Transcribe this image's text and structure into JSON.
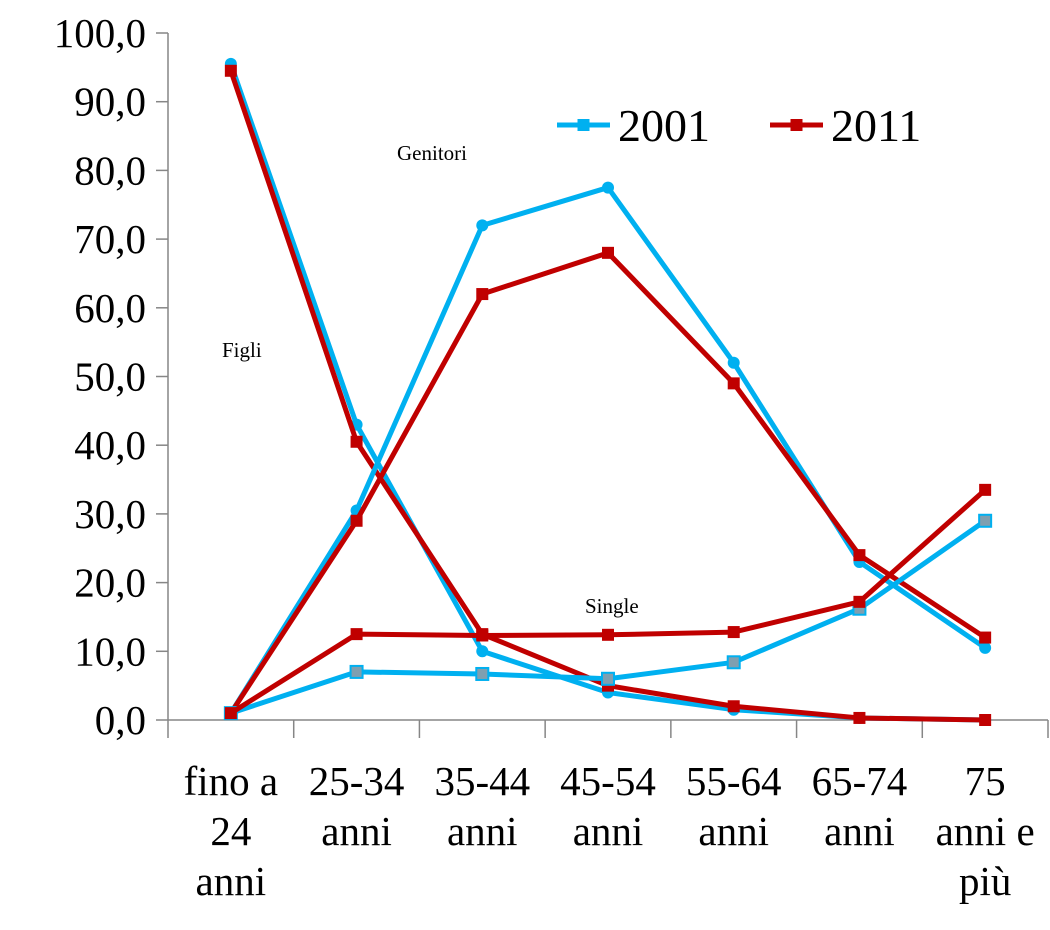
{
  "chart_data": {
    "type": "line",
    "categories": [
      [
        "fino a",
        "24",
        "anni"
      ],
      [
        "25-34",
        "anni"
      ],
      [
        "35-44",
        "anni"
      ],
      [
        "45-54",
        "anni"
      ],
      [
        "55-64",
        "anni"
      ],
      [
        "65-74",
        "anni"
      ],
      [
        "75",
        "anni e",
        "più"
      ]
    ],
    "ylim": [
      0,
      100
    ],
    "yticks": [
      "0,0",
      "10,0",
      "20,0",
      "30,0",
      "40,0",
      "50,0",
      "60,0",
      "70,0",
      "80,0",
      "90,0",
      "100,0"
    ],
    "legend": {
      "position": "top-right",
      "entries": [
        "2001",
        "2011"
      ]
    },
    "colors": {
      "2001": "#00B0F0",
      "2011": "#C00000"
    },
    "grid": false,
    "groups": [
      {
        "name": "Figli",
        "series": [
          {
            "year": "2001",
            "values": [
              95.5,
              43.0,
              10.0,
              4.0,
              1.5,
              0.3,
              0.0
            ]
          },
          {
            "year": "2011",
            "values": [
              94.5,
              40.5,
              12.5,
              5.0,
              2.0,
              0.3,
              0.0
            ]
          }
        ]
      },
      {
        "name": "Genitori",
        "series": [
          {
            "year": "2001",
            "values": [
              1.0,
              30.5,
              72.0,
              77.5,
              52.0,
              23.0,
              10.5
            ]
          },
          {
            "year": "2011",
            "values": [
              1.0,
              29.0,
              62.0,
              68.0,
              49.0,
              24.0,
              12.0
            ]
          }
        ]
      },
      {
        "name": "Single",
        "series": [
          {
            "year": "2001",
            "values": [
              1.0,
              7.0,
              6.7,
              6.0,
              8.4,
              16.2,
              29.0
            ]
          },
          {
            "year": "2011",
            "values": [
              1.0,
              12.5,
              12.3,
              12.4,
              12.8,
              17.2,
              33.5
            ]
          }
        ]
      }
    ],
    "annotations": [
      "Genitori",
      "Figli",
      "Single"
    ]
  }
}
